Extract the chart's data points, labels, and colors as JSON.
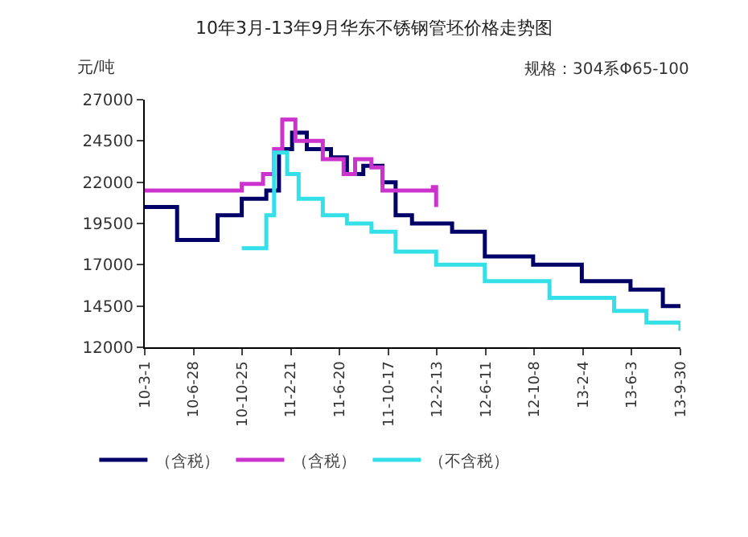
{
  "chart_data": {
    "type": "step",
    "title": "10年3月-13年9月华东不锈钢管坯价格走势图",
    "ylabel": "元/吨",
    "annotations": [
      "规格：304系Φ65-100"
    ],
    "x": [
      "2010-03-01",
      "2010-04-21",
      "2010-05-19",
      "2010-08-26",
      "2010-10-24",
      "2010-12-23",
      "2011-01-23",
      "2011-02-24",
      "2011-04-01",
      "2011-05-30",
      "2011-07-08",
      "2011-08-17",
      "2011-10-03",
      "2011-11-04",
      "2011-12-14",
      "2012-02-03",
      "2012-03-21",
      "2012-06-09",
      "2012-10-05",
      "2013-02-01",
      "2013-05-31",
      "2013-08-18",
      "2013-09-30"
    ],
    "series": [
      {
        "name": "（含税）",
        "color": "#000066",
        "values": [
          20500,
          20500,
          18500,
          20000,
          21000,
          21500,
          24000,
          25000,
          24000,
          23500,
          22500,
          23000,
          22000,
          20000,
          19500,
          19500,
          19000,
          17500,
          17000,
          16000,
          15500,
          14500,
          14500
        ]
      },
      {
        "name": "（含税）",
        "color": "#cc33cc",
        "x": [
          "2010-03-01",
          "2010-04-21",
          "2010-09-15",
          "2010-10-24",
          "2010-12-15",
          "2011-01-11",
          "2011-01-31",
          "2011-03-04",
          "2011-05-10",
          "2011-06-30",
          "2011-07-28",
          "2011-09-06",
          "2011-10-03",
          "2012-02-03",
          "2012-02-11"
        ],
        "values": [
          21500,
          21500,
          21500,
          21900,
          22500,
          24000,
          25800,
          24500,
          23400,
          22500,
          23400,
          22900,
          21500,
          21700,
          20500
        ]
      },
      {
        "name": "（不含税）",
        "color": "#33e0e8",
        "x": [
          "2010-10-24",
          "2010-12-23",
          "2011-01-11",
          "2011-02-12",
          "2011-03-12",
          "2011-05-10",
          "2011-07-08",
          "2011-09-06",
          "2011-11-04",
          "2012-02-11",
          "2012-06-09",
          "2012-11-14",
          "2013-04-21",
          "2013-07-09",
          "2013-09-30"
        ],
        "values": [
          18000,
          20000,
          23800,
          22500,
          21000,
          20000,
          19500,
          19000,
          17800,
          17000,
          16000,
          15000,
          14200,
          13500,
          13000
        ]
      }
    ],
    "xlim": [
      "2010-03-01",
      "2013-09-30"
    ],
    "xticks": [
      {
        "value": "2010-03-01",
        "label": "10-3-1"
      },
      {
        "value": "2010-06-28",
        "label": "10-6-28"
      },
      {
        "value": "2010-10-25",
        "label": "10-10-25"
      },
      {
        "value": "2011-02-21",
        "label": "11-2-21"
      },
      {
        "value": "2011-06-20",
        "label": "11-6-20"
      },
      {
        "value": "2011-10-17",
        "label": "11-10-17"
      },
      {
        "value": "2012-02-13",
        "label": "12-2-13"
      },
      {
        "value": "2012-06-11",
        "label": "12-6-11"
      },
      {
        "value": "2012-10-08",
        "label": "12-10-8"
      },
      {
        "value": "2013-02-04",
        "label": "13-2-4"
      },
      {
        "value": "2013-06-03",
        "label": "13-6-3"
      },
      {
        "value": "2013-09-30",
        "label": "13-9-30"
      }
    ],
    "ylim": [
      12000,
      27000
    ],
    "yticks": [
      12000,
      14500,
      17000,
      19500,
      22000,
      24500,
      27000
    ],
    "grid": false,
    "legend": "bottom",
    "line_style": "solid",
    "marker": "none"
  }
}
